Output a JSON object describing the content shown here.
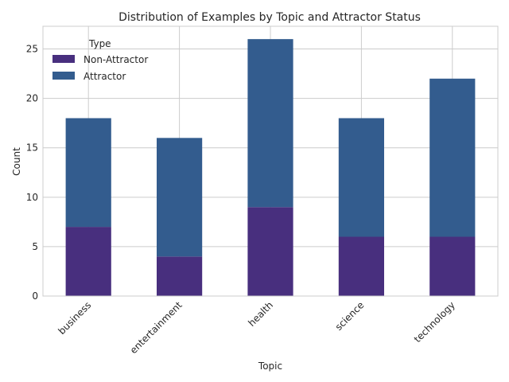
{
  "chart_data": {
    "type": "bar",
    "stacked": true,
    "title": "Distribution of Examples by Topic and Attractor Status",
    "xlabel": "Topic",
    "ylabel": "Count",
    "categories": [
      "business",
      "entertainment",
      "health",
      "science",
      "technology"
    ],
    "series": [
      {
        "name": "Non-Attractor",
        "values": [
          7,
          4,
          9,
          6,
          6
        ],
        "color": "#482f7e"
      },
      {
        "name": "Attractor",
        "values": [
          11,
          12,
          17,
          12,
          16
        ],
        "color": "#335c8e"
      }
    ],
    "ylim": [
      0,
      27.3
    ],
    "yticks": [
      0,
      5,
      10,
      15,
      20,
      25
    ],
    "grid": true,
    "legend": {
      "title": "Type",
      "position": "top-left"
    }
  }
}
